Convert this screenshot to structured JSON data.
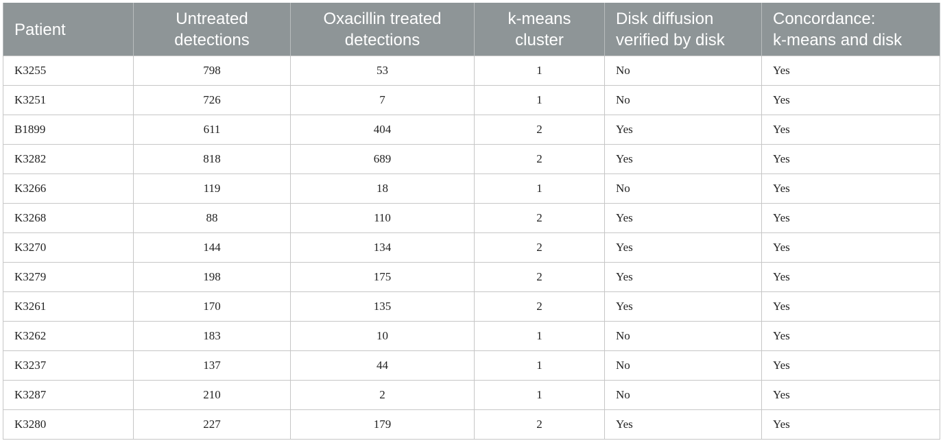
{
  "table": {
    "headers": [
      {
        "label": "Patient",
        "line1": "Patient",
        "line2": ""
      },
      {
        "label": "Untreated detections",
        "line1": "Untreated",
        "line2": "detections"
      },
      {
        "label": "Oxacillin treated detections",
        "line1": "Oxacillin treated",
        "line2": "detections"
      },
      {
        "label": "k-means cluster",
        "line1": "k-means",
        "line2": "cluster"
      },
      {
        "label": "Disk diffusion verified by disk",
        "line1": "Disk diffusion",
        "line2": "verified by disk"
      },
      {
        "label": "Concordance: k-means and disk",
        "line1": "Concordance:",
        "line2": "k-means and disk"
      }
    ],
    "rows": [
      [
        "K3255",
        "798",
        "53",
        "1",
        "No",
        "Yes"
      ],
      [
        "K3251",
        "726",
        "7",
        "1",
        "No",
        "Yes"
      ],
      [
        "B1899",
        "611",
        "404",
        "2",
        "Yes",
        "Yes"
      ],
      [
        "K3282",
        "818",
        "689",
        "2",
        "Yes",
        "Yes"
      ],
      [
        "K3266",
        "119",
        "18",
        "1",
        "No",
        "Yes"
      ],
      [
        "K3268",
        "88",
        "110",
        "2",
        "Yes",
        "Yes"
      ],
      [
        "K3270",
        "144",
        "134",
        "2",
        "Yes",
        "Yes"
      ],
      [
        "K3279",
        "198",
        "175",
        "2",
        "Yes",
        "Yes"
      ],
      [
        "K3261",
        "170",
        "135",
        "2",
        "Yes",
        "Yes"
      ],
      [
        "K3262",
        "183",
        "10",
        "1",
        "No",
        "Yes"
      ],
      [
        "K3237",
        "137",
        "44",
        "1",
        "No",
        "Yes"
      ],
      [
        "K3287",
        "210",
        "2",
        "1",
        "No",
        "Yes"
      ],
      [
        "K3280",
        "227",
        "179",
        "2",
        "Yes",
        "Yes"
      ]
    ]
  },
  "colors": {
    "header_background": "#8e9597",
    "header_text": "#ffffff",
    "grid_line": "#c6c6c6"
  }
}
